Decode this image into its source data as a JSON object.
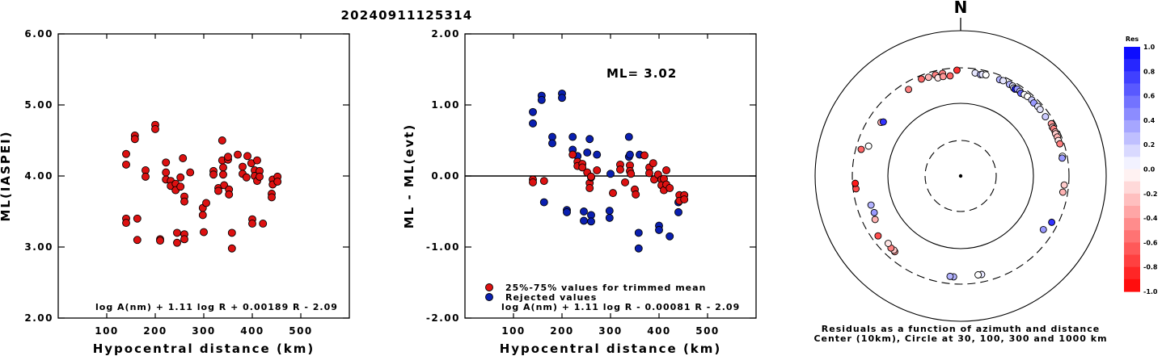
{
  "title": "20240911125314",
  "chart_data": [
    {
      "type": "scatter",
      "xlabel": "Hypocentral distance (km)",
      "ylabel": "ML(IASPEI)",
      "xlim": [
        0,
        600
      ],
      "ylim": [
        2.0,
        6.0
      ],
      "x_ticks": [
        "100",
        "200",
        "300",
        "400",
        "500"
      ],
      "y_ticks": [
        "2.00",
        "3.00",
        "4.00",
        "5.00",
        "6.00"
      ],
      "formula": "log A(nm) + 1.11 log R + 0.00189 R - 2.09",
      "color": "#dd1111",
      "points": [
        [
          140,
          4.31
        ],
        [
          140,
          4.16
        ],
        [
          140,
          3.4
        ],
        [
          140,
          3.34
        ],
        [
          158,
          4.57
        ],
        [
          158,
          4.52
        ],
        [
          163,
          3.4
        ],
        [
          163,
          3.1
        ],
        [
          180,
          4.08
        ],
        [
          180,
          3.99
        ],
        [
          200,
          4.72
        ],
        [
          200,
          4.66
        ],
        [
          210,
          3.11
        ],
        [
          210,
          3.09
        ],
        [
          222,
          4.19
        ],
        [
          222,
          4.05
        ],
        [
          222,
          3.95
        ],
        [
          232,
          3.93
        ],
        [
          232,
          3.86
        ],
        [
          242,
          3.89
        ],
        [
          242,
          3.8
        ],
        [
          245,
          3.2
        ],
        [
          245,
          3.06
        ],
        [
          252,
          3.98
        ],
        [
          252,
          3.85
        ],
        [
          257,
          4.25
        ],
        [
          260,
          3.71
        ],
        [
          260,
          3.64
        ],
        [
          260,
          3.18
        ],
        [
          260,
          3.11
        ],
        [
          272,
          4.05
        ],
        [
          298,
          3.55
        ],
        [
          298,
          3.45
        ],
        [
          300,
          3.21
        ],
        [
          305,
          3.62
        ],
        [
          320,
          4.07
        ],
        [
          320,
          4.02
        ],
        [
          330,
          3.83
        ],
        [
          330,
          3.79
        ],
        [
          338,
          4.5
        ],
        [
          338,
          4.22
        ],
        [
          340,
          4.12
        ],
        [
          340,
          4.02
        ],
        [
          342,
          3.87
        ],
        [
          350,
          4.23
        ],
        [
          350,
          4.27
        ],
        [
          352,
          3.81
        ],
        [
          352,
          3.74
        ],
        [
          358,
          3.2
        ],
        [
          358,
          2.98
        ],
        [
          370,
          4.3
        ],
        [
          380,
          4.13
        ],
        [
          380,
          4.03
        ],
        [
          388,
          3.98
        ],
        [
          390,
          4.28
        ],
        [
          398,
          4.18
        ],
        [
          400,
          3.39
        ],
        [
          400,
          3.33
        ],
        [
          405,
          4.08
        ],
        [
          405,
          4.0
        ],
        [
          410,
          3.93
        ],
        [
          410,
          4.22
        ],
        [
          415,
          4.07
        ],
        [
          415,
          3.99
        ],
        [
          422,
          3.33
        ],
        [
          440,
          3.75
        ],
        [
          440,
          3.7
        ],
        [
          442,
          3.95
        ],
        [
          442,
          3.88
        ],
        [
          452,
          3.99
        ],
        [
          452,
          3.92
        ]
      ]
    },
    {
      "type": "scatter",
      "xlabel": "Hypocentral distance (km)",
      "ylabel": "ML - ML(evt)",
      "xlim": [
        0,
        600
      ],
      "ylim": [
        -2.0,
        2.0
      ],
      "x_ticks": [
        "100",
        "200",
        "300",
        "400",
        "500"
      ],
      "y_ticks": [
        "-2.00",
        "-1.00",
        "0.00",
        "1.00",
        "2.00"
      ],
      "ml_label": "ML= 3.02",
      "formula": "log A(nm) + 1.11 log R - 0.00081 R - 2.09",
      "legend": [
        "25%-75% values for trimmed mean",
        "Rejected values"
      ],
      "colors": {
        "used": "#dd1111",
        "rejected": "#0a1fb0"
      },
      "used": [
        [
          140,
          -0.05
        ],
        [
          140,
          -0.09
        ],
        [
          163,
          -0.07
        ],
        [
          222,
          0.3
        ],
        [
          232,
          0.2
        ],
        [
          232,
          0.14
        ],
        [
          242,
          0.17
        ],
        [
          242,
          0.12
        ],
        [
          252,
          0.05
        ],
        [
          257,
          -0.1
        ],
        [
          257,
          -0.17
        ],
        [
          260,
          -0.02
        ],
        [
          260,
          -0.01
        ],
        [
          272,
          0.08
        ],
        [
          305,
          -0.24
        ],
        [
          320,
          0.16
        ],
        [
          320,
          0.09
        ],
        [
          330,
          -0.09
        ],
        [
          340,
          0.15
        ],
        [
          340,
          0.07
        ],
        [
          342,
          0.03
        ],
        [
          350,
          -0.19
        ],
        [
          352,
          -0.26
        ],
        [
          370,
          0.29
        ],
        [
          380,
          0.12
        ],
        [
          380,
          0.04
        ],
        [
          388,
          0.18
        ],
        [
          390,
          -0.05
        ],
        [
          398,
          0.02
        ],
        [
          405,
          -0.05
        ],
        [
          405,
          -0.13
        ],
        [
          410,
          -0.2
        ],
        [
          410,
          -0.04
        ],
        [
          415,
          0.08
        ],
        [
          415,
          -0.12
        ],
        [
          422,
          -0.17
        ],
        [
          442,
          -0.27
        ],
        [
          442,
          -0.35
        ],
        [
          452,
          -0.27
        ],
        [
          452,
          -0.33
        ]
      ],
      "rejected": [
        [
          140,
          0.9
        ],
        [
          140,
          0.74
        ],
        [
          158,
          1.13
        ],
        [
          158,
          1.07
        ],
        [
          163,
          -0.37
        ],
        [
          180,
          0.55
        ],
        [
          180,
          0.46
        ],
        [
          200,
          1.16
        ],
        [
          200,
          1.1
        ],
        [
          210,
          -0.48
        ],
        [
          210,
          -0.51
        ],
        [
          222,
          0.55
        ],
        [
          222,
          0.37
        ],
        [
          232,
          0.28
        ],
        [
          245,
          -0.5
        ],
        [
          245,
          -0.63
        ],
        [
          252,
          0.33
        ],
        [
          257,
          0.52
        ],
        [
          260,
          -0.55
        ],
        [
          260,
          -0.64
        ],
        [
          272,
          0.3
        ],
        [
          298,
          -0.49
        ],
        [
          298,
          -0.59
        ],
        [
          300,
          0.03
        ],
        [
          338,
          0.55
        ],
        [
          338,
          0.27
        ],
        [
          340,
          0.3
        ],
        [
          358,
          -0.8
        ],
        [
          358,
          -1.02
        ],
        [
          360,
          0.3
        ],
        [
          400,
          -0.7
        ],
        [
          400,
          -0.76
        ],
        [
          422,
          -0.85
        ],
        [
          440,
          -0.37
        ],
        [
          440,
          -0.51
        ]
      ]
    },
    {
      "type": "polar",
      "north_label": "N",
      "caption": [
        "Residuals as a function of azimuth and distance",
        "Center (10km), Circle at 30, 100, 300 and 1000 km"
      ],
      "colorbar": {
        "title": "Res",
        "labels": [
          "1.0",
          "0.8",
          "0.6",
          "0.4",
          "0.2",
          "0.0",
          "-0.2",
          "-0.4",
          "-0.6",
          "-0.8",
          "-1.0"
        ],
        "values": [
          1.0,
          0.8,
          0.6,
          0.4,
          0.2,
          0.0,
          -0.2,
          -0.4,
          -0.6,
          -0.8,
          -1.0
        ]
      },
      "stations": [
        [
          -22,
          268,
          -0.6
        ],
        [
          -18,
          262,
          -0.3
        ],
        [
          -14,
          265,
          -0.5
        ],
        [
          -10,
          265,
          -0.5
        ],
        [
          -2,
          279,
          -0.8
        ],
        [
          8,
          264,
          0.1
        ],
        [
          11,
          258,
          0.3
        ],
        [
          12,
          262,
          0.1
        ],
        [
          14,
          265,
          0.0
        ],
        [
          22,
          263,
          0.3
        ],
        [
          24,
          266,
          0.1
        ],
        [
          28,
          262,
          0.3
        ],
        [
          30,
          263,
          0.1
        ],
        [
          31,
          253,
          0.1
        ],
        [
          32,
          251,
          0.9
        ],
        [
          33,
          261,
          0.4
        ],
        [
          35,
          258,
          0.2
        ],
        [
          36,
          250,
          0.6
        ],
        [
          38,
          258,
          0.0
        ],
        [
          40,
          262,
          0.0
        ],
        [
          43,
          264,
          0.2
        ],
        [
          45,
          258,
          0.4
        ],
        [
          48,
          262,
          0.1
        ],
        [
          50,
          260,
          0.1
        ],
        [
          55,
          258,
          0.2
        ],
        [
          60,
          268,
          -0.4
        ],
        [
          62,
          262,
          -0.2
        ],
        [
          63,
          265,
          -0.5
        ],
        [
          65,
          265,
          -0.3
        ],
        [
          66,
          262,
          -0.2
        ],
        [
          68,
          264,
          -0.3
        ],
        [
          70,
          262,
          -0.1
        ],
        [
          72,
          265,
          -0.5
        ],
        [
          79,
          260,
          0.0
        ],
        [
          80,
          255,
          0.4
        ],
        [
          95,
          262,
          -0.2
        ],
        [
          99,
          258,
          -0.3
        ],
        [
          117,
          248,
          0.8
        ],
        [
          123,
          222,
          0.4
        ],
        [
          168,
          238,
          0.1
        ],
        [
          170,
          236,
          0.0
        ],
        [
          184,
          241,
          0.3
        ],
        [
          186,
          240,
          0.3
        ],
        [
          221,
          235,
          -0.4
        ],
        [
          222,
          231,
          -0.2
        ],
        [
          224,
          234,
          -0.5
        ],
        [
          227,
          225,
          -0.1
        ],
        [
          234,
          247,
          -0.7
        ],
        [
          243,
          205,
          -0.3
        ],
        [
          247,
          192,
          0.4
        ],
        [
          252,
          194,
          0.3
        ],
        [
          263,
          274,
          -0.7
        ],
        [
          266,
          276,
          -0.9
        ],
        [
          285,
          254,
          -0.6
        ],
        [
          288,
          210,
          0.0
        ],
        [
          304,
          205,
          -0.3
        ],
        [
          305,
          195,
          0.8
        ],
        [
          329,
          240,
          -0.5
        ],
        [
          347,
          238,
          -0.1
        ],
        [
          350,
          240,
          -0.4
        ],
        [
          354,
          238,
          -0.6
        ]
      ]
    }
  ]
}
